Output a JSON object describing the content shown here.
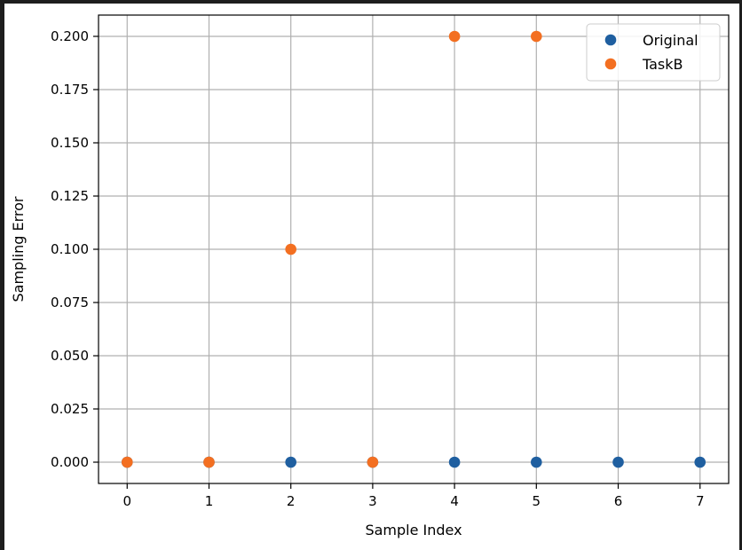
{
  "chart_data": {
    "type": "scatter",
    "title": "",
    "xlabel": "Sample Index",
    "ylabel": "Sampling Error",
    "xlim": [
      -0.35,
      7.35
    ],
    "ylim": [
      -0.01,
      0.21
    ],
    "xticks": [
      0,
      1,
      2,
      3,
      4,
      5,
      6,
      7
    ],
    "xtick_labels": [
      "0",
      "1",
      "2",
      "3",
      "4",
      "5",
      "6",
      "7"
    ],
    "yticks": [
      0,
      0.025,
      0.05,
      0.075,
      0.1,
      0.125,
      0.15,
      0.175,
      0.2
    ],
    "ytick_labels": [
      "0.000",
      "0.025",
      "0.050",
      "0.075",
      "0.100",
      "0.125",
      "0.150",
      "0.175",
      "0.200"
    ],
    "grid": true,
    "legend_position": "top-right",
    "series": [
      {
        "name": "Original",
        "color": "#1f5fa0",
        "x": [
          0,
          1,
          2,
          3,
          4,
          5,
          6,
          7
        ],
        "y": [
          0,
          0,
          0,
          0,
          0,
          0,
          0,
          0
        ]
      },
      {
        "name": "TaskB",
        "color": "#f36f21",
        "x": [
          0,
          1,
          2,
          3,
          4,
          5
        ],
        "y": [
          0,
          0,
          0.1,
          0,
          0.2,
          0.2
        ]
      }
    ]
  }
}
